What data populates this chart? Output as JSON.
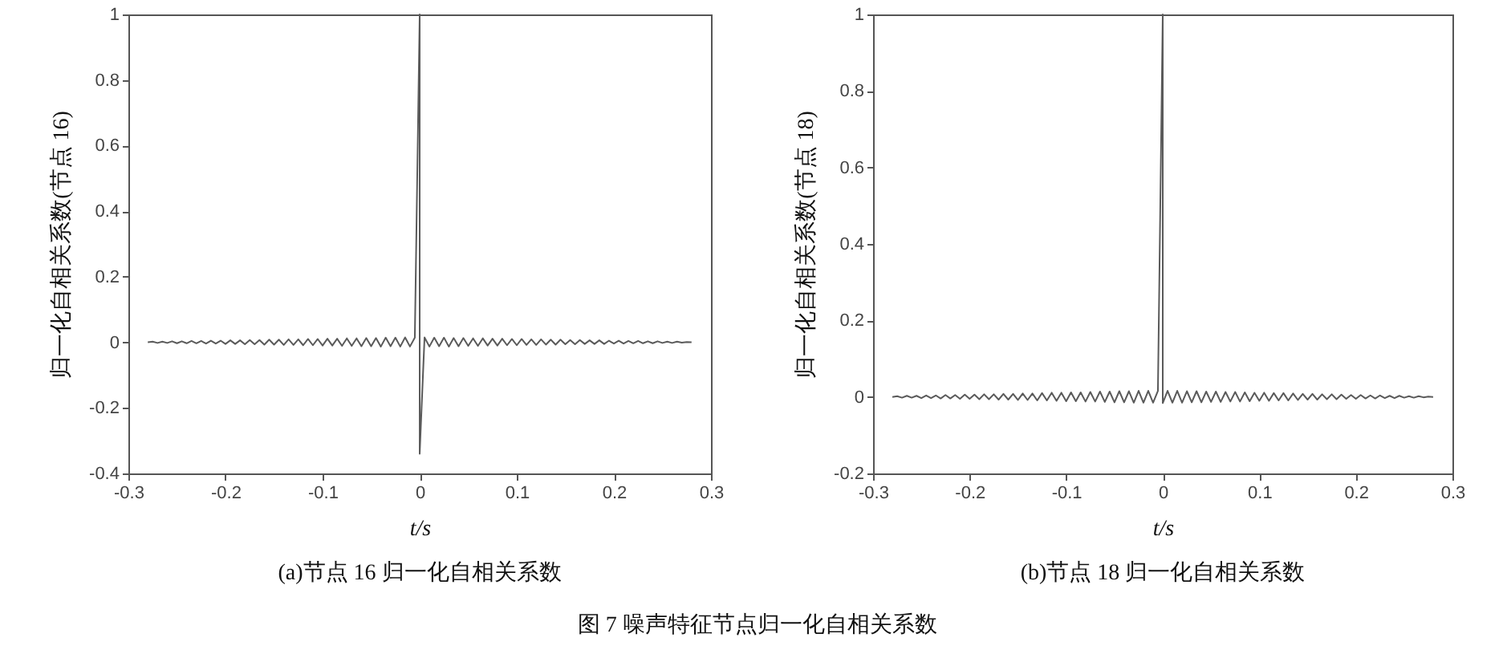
{
  "chart_data": [
    {
      "type": "line",
      "title": "(a)节点 16 归一化自相关系数",
      "xlabel": "t/s",
      "ylabel": "归一化自相关系数(节点 16)",
      "x": [
        -0.28,
        -0.275,
        -0.27,
        -0.265,
        -0.26,
        -0.255,
        -0.25,
        -0.245,
        -0.24,
        -0.235,
        -0.23,
        -0.225,
        -0.22,
        -0.215,
        -0.21,
        -0.205,
        -0.2,
        -0.195,
        -0.19,
        -0.185,
        -0.18,
        -0.175,
        -0.17,
        -0.165,
        -0.16,
        -0.155,
        -0.15,
        -0.145,
        -0.14,
        -0.135,
        -0.13,
        -0.125,
        -0.12,
        -0.115,
        -0.11,
        -0.105,
        -0.1,
        -0.095,
        -0.09,
        -0.085,
        -0.08,
        -0.075,
        -0.07,
        -0.065,
        -0.06,
        -0.055,
        -0.05,
        -0.045,
        -0.04,
        -0.035,
        -0.03,
        -0.025,
        -0.02,
        -0.015,
        -0.01,
        -0.005,
        0,
        0,
        0.005,
        0.01,
        0.015,
        0.02,
        0.025,
        0.03,
        0.035,
        0.04,
        0.045,
        0.05,
        0.055,
        0.06,
        0.065,
        0.07,
        0.075,
        0.08,
        0.085,
        0.09,
        0.095,
        0.1,
        0.105,
        0.11,
        0.115,
        0.12,
        0.125,
        0.13,
        0.135,
        0.14,
        0.145,
        0.15,
        0.155,
        0.16,
        0.165,
        0.17,
        0.175,
        0.18,
        0.185,
        0.19,
        0.195,
        0.2,
        0.205,
        0.21,
        0.215,
        0.22,
        0.225,
        0.23,
        0.235,
        0.24,
        0.245,
        0.25,
        0.255,
        0.26,
        0.265,
        0.27,
        0.275,
        0.28
      ],
      "series": [
        {
          "color": "#5a5a5a",
          "values": [
            0,
            0.002,
            -0.002,
            0.002,
            -0.002,
            0.003,
            -0.003,
            0.003,
            -0.003,
            0.004,
            -0.003,
            0.004,
            -0.004,
            0.005,
            -0.004,
            0.005,
            -0.005,
            0.006,
            -0.005,
            0.006,
            -0.006,
            0.007,
            -0.006,
            0.007,
            -0.007,
            0.008,
            -0.007,
            0.008,
            -0.008,
            0.009,
            -0.008,
            0.009,
            -0.009,
            0.01,
            -0.009,
            0.01,
            -0.01,
            0.011,
            -0.01,
            0.011,
            -0.011,
            0.012,
            -0.011,
            0.012,
            -0.012,
            0.013,
            -0.012,
            0.013,
            -0.013,
            0.014,
            -0.012,
            0.014,
            -0.013,
            0.015,
            -0.013,
            0.014,
            1,
            -0.34,
            0.015,
            -0.013,
            0.014,
            -0.012,
            0.014,
            -0.013,
            0.013,
            -0.012,
            0.013,
            -0.011,
            0.012,
            -0.011,
            0.012,
            -0.01,
            0.011,
            -0.01,
            0.011,
            -0.009,
            0.01,
            -0.009,
            0.01,
            -0.008,
            0.009,
            -0.008,
            0.009,
            -0.007,
            0.008,
            -0.007,
            0.008,
            -0.006,
            0.007,
            -0.006,
            0.007,
            -0.005,
            0.006,
            -0.005,
            0.006,
            -0.005,
            0.005,
            -0.004,
            0.005,
            -0.004,
            0.004,
            -0.003,
            0.004,
            -0.003,
            0.003,
            -0.003,
            0.003,
            -0.002,
            0.002,
            -0.002,
            0.002,
            -0.001,
            0.001,
            0
          ]
        }
      ],
      "xlim": [
        -0.3,
        0.3
      ],
      "ylim": [
        -0.4,
        1
      ],
      "xticks": [
        -0.3,
        -0.2,
        -0.1,
        0,
        0.1,
        0.2,
        0.3
      ],
      "yticks": [
        -0.4,
        -0.2,
        0,
        0.2,
        0.4,
        0.6,
        0.8,
        1
      ],
      "annotations": [
        "图 7  噪声特征节点归一化自相关系数"
      ]
    },
    {
      "type": "line",
      "title": "(b)节点 18 归一化自相关系数",
      "xlabel": "t/s",
      "ylabel": "归一化自相关系数(节点 18)",
      "x": [
        -0.28,
        -0.275,
        -0.27,
        -0.265,
        -0.26,
        -0.255,
        -0.25,
        -0.245,
        -0.24,
        -0.235,
        -0.23,
        -0.225,
        -0.22,
        -0.215,
        -0.21,
        -0.205,
        -0.2,
        -0.195,
        -0.19,
        -0.185,
        -0.18,
        -0.175,
        -0.17,
        -0.165,
        -0.16,
        -0.155,
        -0.15,
        -0.145,
        -0.14,
        -0.135,
        -0.13,
        -0.125,
        -0.12,
        -0.115,
        -0.11,
        -0.105,
        -0.1,
        -0.095,
        -0.09,
        -0.085,
        -0.08,
        -0.075,
        -0.07,
        -0.065,
        -0.06,
        -0.055,
        -0.05,
        -0.045,
        -0.04,
        -0.035,
        -0.03,
        -0.025,
        -0.02,
        -0.015,
        -0.01,
        -0.005,
        0,
        0,
        0.005,
        0.01,
        0.015,
        0.02,
        0.025,
        0.03,
        0.035,
        0.04,
        0.045,
        0.05,
        0.055,
        0.06,
        0.065,
        0.07,
        0.075,
        0.08,
        0.085,
        0.09,
        0.095,
        0.1,
        0.105,
        0.11,
        0.115,
        0.12,
        0.125,
        0.13,
        0.135,
        0.14,
        0.145,
        0.15,
        0.155,
        0.16,
        0.165,
        0.17,
        0.175,
        0.18,
        0.185,
        0.19,
        0.195,
        0.2,
        0.205,
        0.21,
        0.215,
        0.22,
        0.225,
        0.23,
        0.235,
        0.24,
        0.245,
        0.25,
        0.255,
        0.26,
        0.265,
        0.27,
        0.275,
        0.28
      ],
      "series": [
        {
          "color": "#5a5a5a",
          "values": [
            0,
            0.002,
            -0.002,
            0.003,
            -0.002,
            0.003,
            -0.003,
            0.004,
            -0.003,
            0.004,
            -0.004,
            0.005,
            -0.004,
            0.005,
            -0.005,
            0.006,
            -0.005,
            0.006,
            -0.006,
            0.007,
            -0.006,
            0.007,
            -0.007,
            0.008,
            -0.007,
            0.008,
            -0.008,
            0.009,
            -0.008,
            0.009,
            -0.009,
            0.01,
            -0.009,
            0.011,
            -0.01,
            0.011,
            -0.011,
            0.012,
            -0.011,
            0.012,
            -0.012,
            0.013,
            -0.012,
            0.014,
            -0.013,
            0.014,
            -0.014,
            0.015,
            -0.014,
            0.015,
            -0.015,
            0.016,
            -0.015,
            0.016,
            -0.015,
            0.016,
            1,
            -0.016,
            0.016,
            -0.015,
            0.016,
            -0.015,
            0.015,
            -0.014,
            0.015,
            -0.014,
            0.014,
            -0.013,
            0.014,
            -0.013,
            0.013,
            -0.012,
            0.013,
            -0.012,
            0.012,
            -0.011,
            0.011,
            -0.01,
            0.011,
            -0.01,
            0.01,
            -0.009,
            0.01,
            -0.009,
            0.009,
            -0.008,
            0.008,
            -0.007,
            0.008,
            -0.007,
            0.007,
            -0.006,
            0.007,
            -0.006,
            0.006,
            -0.005,
            0.005,
            -0.005,
            0.005,
            -0.004,
            0.004,
            -0.004,
            0.004,
            -0.003,
            0.003,
            -0.003,
            0.003,
            -0.002,
            0.002,
            -0.002,
            0.002,
            -0.001,
            0.001,
            0
          ]
        }
      ],
      "xlim": [
        -0.3,
        0.3
      ],
      "ylim": [
        -0.2,
        1
      ],
      "xticks": [
        -0.3,
        -0.2,
        -0.1,
        0,
        0.1,
        0.2,
        0.3
      ],
      "yticks": [
        -0.2,
        0,
        0.2,
        0.4,
        0.6,
        0.8,
        1
      ]
    }
  ]
}
